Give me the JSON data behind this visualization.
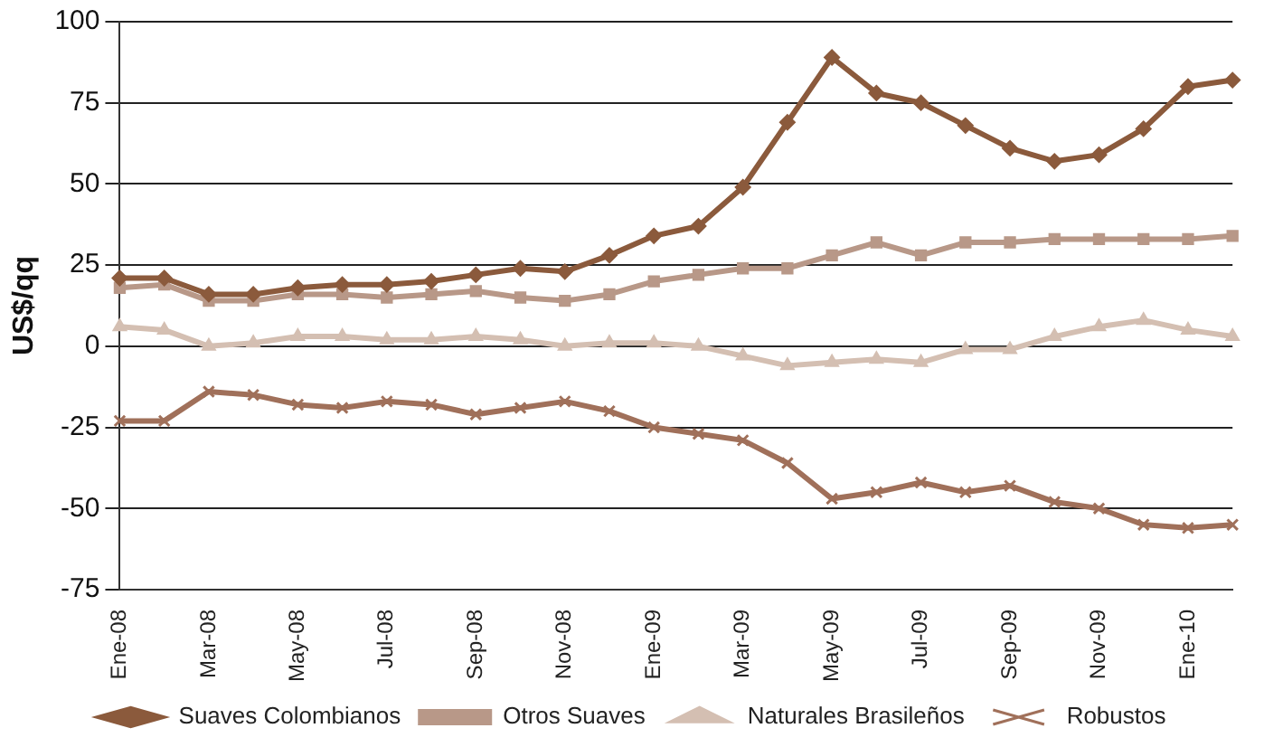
{
  "chart_data": {
    "type": "line",
    "ylabel": "US$/qq",
    "categories": [
      "Ene-08",
      null,
      "Mar-08",
      null,
      "May-08",
      null,
      "Jul-08",
      null,
      "Sep-08",
      null,
      "Nov-08",
      null,
      "Ene-09",
      null,
      "Mar-09",
      null,
      "May-09",
      null,
      "Jul-09",
      null,
      "Sep-09",
      null,
      "Nov-09",
      null,
      "Ene-10",
      null
    ],
    "series": [
      {
        "name": "Suaves Colombianos",
        "color": "#8b5a3c",
        "marker": "diamond",
        "values": [
          21,
          21,
          16,
          16,
          18,
          19,
          19,
          20,
          22,
          24,
          23,
          28,
          34,
          37,
          49,
          69,
          89,
          78,
          75,
          68,
          61,
          57,
          59,
          67,
          80,
          82
        ]
      },
      {
        "name": "Otros Suaves",
        "color": "#b89888",
        "marker": "square",
        "values": [
          18,
          19,
          14,
          14,
          16,
          16,
          15,
          16,
          17,
          15,
          14,
          16,
          20,
          22,
          24,
          24,
          28,
          32,
          28,
          32,
          32,
          33,
          33,
          33,
          33,
          34
        ]
      },
      {
        "name": "Naturales Brasileños",
        "color": "#d4bfb2",
        "marker": "triangle",
        "values": [
          6,
          5,
          0,
          1,
          3,
          3,
          2,
          2,
          3,
          2,
          0,
          1,
          1,
          0,
          -3,
          -6,
          -5,
          -4,
          -5,
          -1,
          -1,
          3,
          6,
          8,
          5,
          3
        ]
      },
      {
        "name": "Robustos",
        "color": "#a0705a",
        "marker": "cross",
        "values": [
          -23,
          -23,
          -14,
          -15,
          -18,
          -19,
          -17,
          -18,
          -21,
          -19,
          -17,
          -20,
          -25,
          -27,
          -29,
          -36,
          -47,
          -45,
          -42,
          -45,
          -43,
          -48,
          -50,
          -55,
          -56,
          -55
        ]
      }
    ],
    "ylim": [
      -75,
      100
    ],
    "yticks": [
      -75,
      -50,
      -25,
      0,
      25,
      50,
      75,
      100
    ],
    "grid": "y",
    "legend": "bottom"
  }
}
